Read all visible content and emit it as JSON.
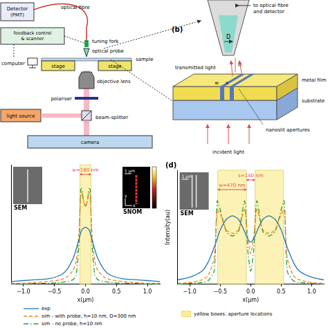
{
  "diagram_a": {
    "detector": "Detector (PMT)",
    "fibre": "optical fibre",
    "tuning_fork": "tuning fork",
    "feedback": "feedback control & scanner",
    "probe": "optical probe",
    "computer": "computer",
    "stage_left": "stage",
    "stage_right": "stage",
    "sample": "sample",
    "objective": "objective lens",
    "polariser": "polariser",
    "light_source": "light source",
    "beam_splitter": "beam-splitter",
    "camera": "camera"
  },
  "diagram_b": {
    "panel": "(b)",
    "fibre_detector": "to optical fibre and detector",
    "D": "D",
    "h": "h",
    "transmitted": "transmitted light",
    "w": "w",
    "s": "s",
    "metal_film": "metal film",
    "substrate": "substrate",
    "apertures": "nanoslit apertures",
    "incident": "incident light"
  },
  "chart_data": [
    {
      "type": "line",
      "x_label": "x(μm)",
      "x": [
        -1.2,
        -1.0,
        -0.8,
        -0.6,
        -0.4,
        -0.3,
        -0.2,
        -0.15,
        -0.1,
        -0.08,
        -0.06,
        -0.03,
        0,
        0.03,
        0.06,
        0.08,
        0.1,
        0.15,
        0.2,
        0.3,
        0.4,
        0.6,
        0.8,
        1.0,
        1.2
      ],
      "series": [
        {
          "name": "exp",
          "color": "#1f77b4",
          "line_style": "solid",
          "values": [
            0.03,
            0.04,
            0.05,
            0.06,
            0.1,
            0.16,
            0.28,
            0.38,
            0.5,
            0.55,
            0.59,
            0.61,
            0.62,
            0.61,
            0.59,
            0.55,
            0.5,
            0.38,
            0.28,
            0.16,
            0.1,
            0.06,
            0.05,
            0.04,
            0.03
          ]
        },
        {
          "name": "sim - with probe, h=10 nm, D=300 nm",
          "color": "#ff7f0e",
          "line_style": "dashed",
          "values": [
            0.01,
            0.01,
            0.02,
            0.03,
            0.05,
            0.08,
            0.15,
            0.25,
            0.6,
            0.95,
            1.0,
            0.9,
            0.85,
            0.9,
            1.0,
            0.95,
            0.6,
            0.25,
            0.15,
            0.08,
            0.05,
            0.03,
            0.02,
            0.01,
            0.01
          ]
        },
        {
          "name": "sim - no probe, h=10 nm",
          "color": "#2ca02c",
          "line_style": "dashdot",
          "values": [
            0.0,
            0.0,
            0.01,
            0.01,
            0.02,
            0.03,
            0.05,
            0.1,
            0.5,
            1.02,
            1.04,
            0.9,
            0.85,
            0.9,
            1.04,
            1.02,
            0.5,
            0.1,
            0.05,
            0.03,
            0.02,
            0.01,
            0.01,
            0.0,
            0.0
          ]
        }
      ],
      "xlim": [
        -1.2,
        1.2
      ],
      "xticks": [
        {
          "value": -1.0,
          "label": "−1.0"
        },
        {
          "value": -0.5,
          "label": "−0.5"
        },
        {
          "value": 0,
          "label": "0.0"
        },
        {
          "value": 0.5,
          "label": "0.5"
        },
        {
          "value": 1.0,
          "label": "1.0"
        }
      ],
      "ylim": [
        0,
        1.3
      ],
      "yticks": [],
      "grid": false,
      "tick_labels": "x",
      "legend": "bottom",
      "aperture_boxes": [
        [
          -0.09,
          0.09
        ]
      ],
      "dimension_labels": [
        {
          "text": "w=180 nm",
          "span": [
            -0.09,
            0.09
          ]
        }
      ],
      "insets": [
        {
          "label": "SEM"
        },
        {
          "label": "SNOM",
          "scale_bar": "1 μm",
          "axes": [
            "x",
            "y"
          ]
        }
      ]
    },
    {
      "type": "line",
      "title": "(d)",
      "x_label": "x(μm)",
      "y_label": "Intensity(au)",
      "x": [
        -1.2,
        -1.0,
        -0.8,
        -0.7,
        -0.6,
        -0.55,
        -0.5,
        -0.4,
        -0.3,
        -0.2,
        -0.1,
        -0.05,
        0,
        0.05,
        0.1,
        0.2,
        0.3,
        0.4,
        0.5,
        0.55,
        0.6,
        0.7,
        0.8,
        1.0,
        1.2
      ],
      "series": [
        {
          "name": "exp",
          "color": "#1f77b4",
          "line_style": "solid",
          "values": [
            0.05,
            0.08,
            0.15,
            0.25,
            0.42,
            0.52,
            0.62,
            0.74,
            0.78,
            0.74,
            0.6,
            0.52,
            0.48,
            0.52,
            0.6,
            0.74,
            0.78,
            0.74,
            0.62,
            0.52,
            0.42,
            0.25,
            0.15,
            0.08,
            0.05
          ]
        },
        {
          "name": "sim - with probe, h=10 nm, D=300 nm",
          "color": "#ff7f0e",
          "line_style": "dashed",
          "values": [
            0.01,
            0.02,
            0.05,
            0.1,
            0.3,
            0.85,
            0.8,
            0.62,
            0.58,
            0.62,
            0.85,
            0.55,
            0.35,
            0.55,
            0.85,
            0.62,
            0.58,
            0.62,
            0.8,
            0.85,
            0.3,
            0.1,
            0.05,
            0.02,
            0.01
          ]
        },
        {
          "name": "sim - no probe, h=10 nm",
          "color": "#2ca02c",
          "line_style": "dashdot",
          "values": [
            0,
            0.01,
            0.02,
            0.04,
            0.15,
            0.95,
            0.85,
            0.6,
            0.55,
            0.6,
            0.95,
            0.4,
            0.15,
            0.4,
            0.95,
            0.6,
            0.55,
            0.6,
            0.85,
            0.95,
            0.15,
            0.04,
            0.02,
            0.01,
            0
          ]
        }
      ],
      "xlim": [
        -1.2,
        1.2
      ],
      "xticks": [
        {
          "value": -1.0,
          "label": "−1.0"
        },
        {
          "value": -0.5,
          "label": "−0.5"
        },
        {
          "value": 0,
          "label": "0.0"
        },
        {
          "value": 0.5,
          "label": "0.5"
        },
        {
          "value": 1.0,
          "label": "1.0"
        }
      ],
      "ylim": [
        0,
        1.3
      ],
      "yticks": [],
      "grid": false,
      "tick_labels": "x",
      "aperture_boxes": [
        [
          -0.54,
          -0.07
        ],
        [
          0.07,
          0.54
        ]
      ],
      "dimension_labels": [
        {
          "text": "s=140 nm",
          "span": [
            -0.07,
            0.07
          ]
        },
        {
          "text": "w=470 nm",
          "span": [
            -0.54,
            -0.07
          ]
        }
      ],
      "box_label": "yellow boxes: aperture locations",
      "insets": [
        {
          "label": "SEM",
          "scale_bar": "1 μm"
        }
      ]
    }
  ]
}
